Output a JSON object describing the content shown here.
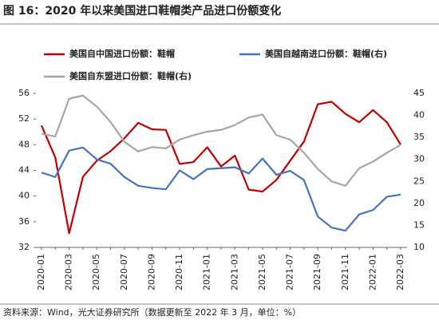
{
  "chart_data": {
    "type": "line",
    "title": "图 16：2020 年以来美国进口鞋帽类产品进口份额变化",
    "source": "资料来源：Wind，光大证券研究所（数据更新至 2022 年 3 月，单位：%）",
    "categories": [
      "2020-01",
      null,
      "2020-03",
      null,
      "2020-05",
      null,
      "2020-07",
      null,
      "2020-09",
      null,
      "2020-11",
      null,
      "2021-01",
      null,
      "2021-03",
      null,
      "2021-05",
      null,
      "2021-07",
      null,
      "2021-09",
      null,
      "2021-11",
      null,
      "2022-01",
      null,
      "2022-03"
    ],
    "series": [
      {
        "name": "美国自中国进口份额：鞋帽",
        "color": "#c00000",
        "axis": "y",
        "values": [
          51,
          46,
          34.2,
          43,
          45.5,
          47,
          49,
          51.4,
          50.4,
          50.3,
          45,
          45.3,
          47.6,
          44.6,
          46.3,
          41,
          40.7,
          42.5,
          45.5,
          48.5,
          54.3,
          54.7,
          52.8,
          51.5,
          53.4,
          51.5,
          48
        ]
      },
      {
        "name": "美国自越南进口份额：鞋帽(右)",
        "color": "#4472c4",
        "axis": "y2",
        "values": [
          27,
          26,
          32,
          32.7,
          30,
          29,
          26,
          24,
          23.5,
          23.2,
          27.5,
          25.5,
          27.8,
          28,
          28.2,
          26.8,
          30.2,
          26.5,
          27.4,
          25.3,
          17,
          14.5,
          13.8,
          17.5,
          18.5,
          21.5,
          22
        ]
      },
      {
        "name": "美国自东盟进口份额：鞋帽(右)",
        "color": "#a6a6a6",
        "axis": "y2",
        "values": [
          35.8,
          35.2,
          43.8,
          44.5,
          42,
          38.5,
          34,
          31.8,
          32.8,
          32.5,
          34.5,
          35.5,
          36.3,
          36.7,
          37.8,
          39.5,
          40.2,
          35.5,
          34.5,
          31.5,
          27.8,
          25,
          24,
          28,
          29.5,
          31.5,
          33.3
        ]
      }
    ],
    "ylim": [
      32,
      56
    ],
    "yticks": [
      32,
      36,
      40,
      44,
      48,
      52,
      56
    ],
    "y2lim": [
      10,
      45
    ],
    "y2ticks": [
      10,
      15,
      20,
      25,
      30,
      35,
      40,
      45
    ]
  }
}
